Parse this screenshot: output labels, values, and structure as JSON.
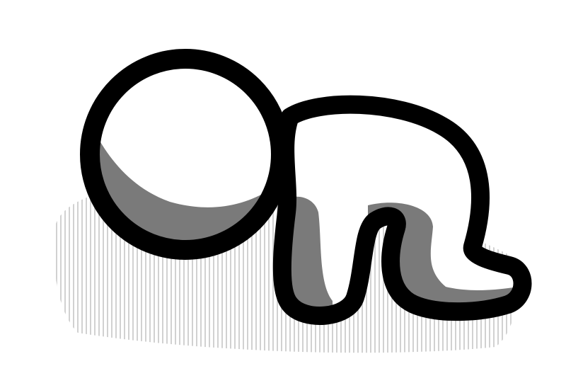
{
  "illustration": {
    "subject_icon": "crawling-figure-icon",
    "style": "hand-drawn sketch",
    "colors": {
      "background": "#ffffff",
      "outline": "#000000",
      "body_fill": "#ffffff",
      "shadow": "#7a7a7a",
      "hatching": "#bdbdbd"
    }
  }
}
